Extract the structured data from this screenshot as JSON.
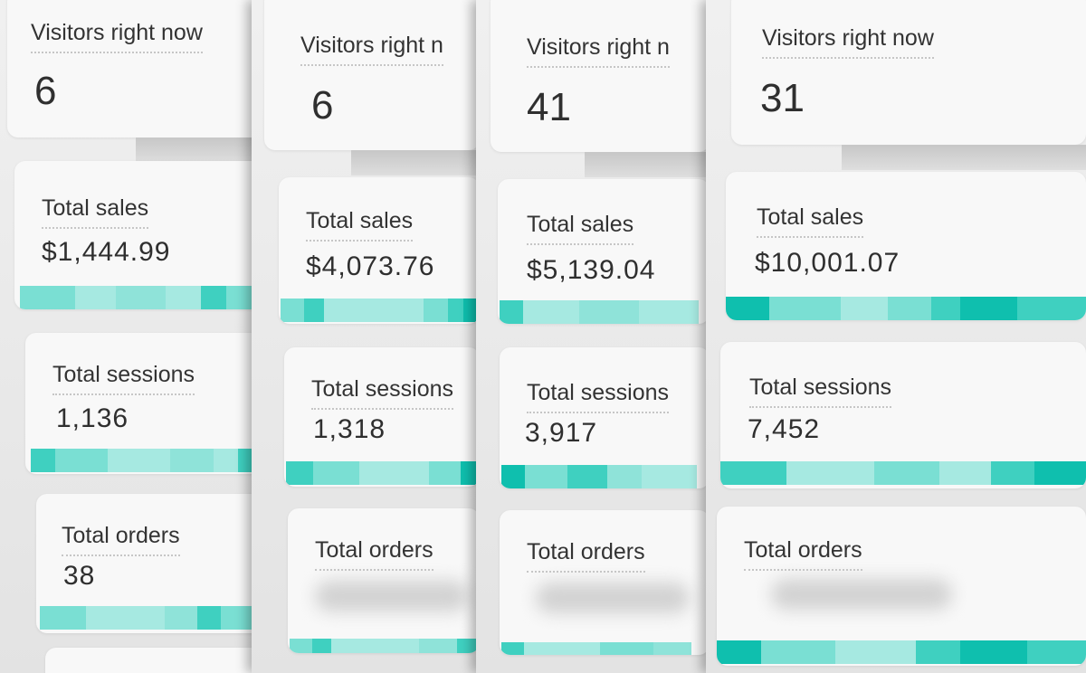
{
  "accent_colors": [
    "#0fbfae",
    "#3fd0c0",
    "#7adfd3",
    "#a6e9e1"
  ],
  "screens": [
    {
      "visitors_title": "Visitors right now",
      "visitors_value": "6",
      "sales_title": "Total sales",
      "sales_value": "$1,444.99",
      "sessions_title": "Total sessions",
      "sessions_value": "1,136",
      "orders_title": "Total orders",
      "orders_value": "38"
    },
    {
      "visitors_title": "Visitors right n",
      "visitors_value": "6",
      "sales_title": "Total sales",
      "sales_value": "$4,073.76",
      "sessions_title": "Total sessions",
      "sessions_value": "1,318",
      "orders_title": "Total orders",
      "orders_value": ""
    },
    {
      "visitors_title": "Visitors right n",
      "visitors_value": "41",
      "sales_title": "Total sales",
      "sales_value": "$5,139.04",
      "sessions_title": "Total sessions",
      "sessions_value": "3,917",
      "orders_title": "Total orders",
      "orders_value": ""
    },
    {
      "visitors_title": "Visitors right now",
      "visitors_value": "31",
      "sales_title": "Total sales",
      "sales_value": "$10,001.07",
      "sessions_title": "Total sessions",
      "sessions_value": "7,452",
      "orders_title": "Total orders",
      "orders_value": ""
    }
  ]
}
